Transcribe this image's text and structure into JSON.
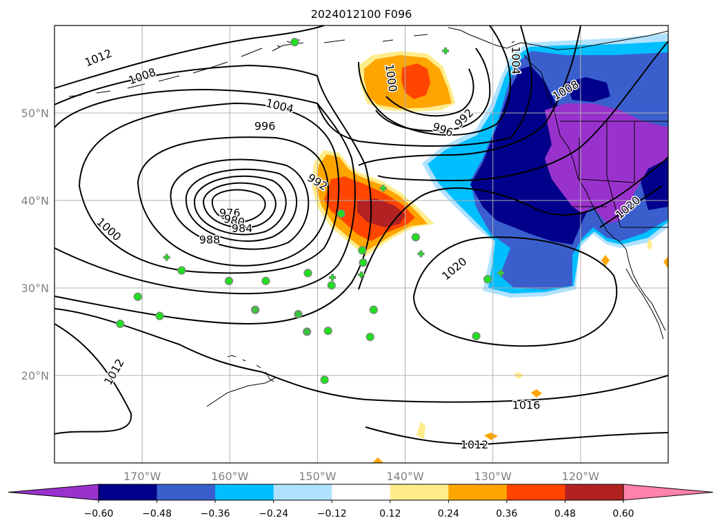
{
  "title": "2024012100 F096",
  "map": {
    "lat_range": [
      10,
      60
    ],
    "lon_range": [
      -180,
      -110
    ],
    "lat_ticks": [
      {
        "value": 20,
        "label": "20°N"
      },
      {
        "value": 30,
        "label": "30°N"
      },
      {
        "value": 40,
        "label": "40°N"
      },
      {
        "value": 50,
        "label": "50°N"
      }
    ],
    "lon_ticks": [
      {
        "value": -170,
        "label": "170°W"
      },
      {
        "value": -160,
        "label": "160°W"
      },
      {
        "value": -150,
        "label": "150°W"
      },
      {
        "value": -140,
        "label": "140°W"
      },
      {
        "value": -130,
        "label": "130°W"
      },
      {
        "value": -120,
        "label": "120°W"
      }
    ],
    "grid": true
  },
  "contour_labels": [
    {
      "text": "1012",
      "lon": -175,
      "lat": 56.3,
      "rot": -22
    },
    {
      "text": "1008",
      "lon": -170,
      "lat": 54.2,
      "rot": -20
    },
    {
      "text": "1004",
      "lon": -154.3,
      "lat": 50.8,
      "rot": 14
    },
    {
      "text": "1000",
      "lon": -141.6,
      "lat": 54,
      "rot": 82
    },
    {
      "text": "996",
      "lon": -156,
      "lat": 48.5,
      "rot": 0
    },
    {
      "text": "996",
      "lon": -135.7,
      "lat": 48.1,
      "rot": 20
    },
    {
      "text": "992",
      "lon": -133.3,
      "lat": 49.4,
      "rot": -45
    },
    {
      "text": "992",
      "lon": -150,
      "lat": 42.1,
      "rot": 32
    },
    {
      "text": "976",
      "lon": -160,
      "lat": 38.6,
      "rot": 0
    },
    {
      "text": "980",
      "lon": -159.5,
      "lat": 37.7,
      "rot": 12
    },
    {
      "text": "984",
      "lon": -158.6,
      "lat": 36.8,
      "rot": 0
    },
    {
      "text": "988",
      "lon": -162.3,
      "lat": 35.5,
      "rot": 0
    },
    {
      "text": "1000",
      "lon": -173.8,
      "lat": 36.7,
      "rot": 42
    },
    {
      "text": "1004",
      "lon": -127.4,
      "lat": 56,
      "rot": 90
    },
    {
      "text": "1008",
      "lon": -121.7,
      "lat": 52.6,
      "rot": -30
    },
    {
      "text": "1020",
      "lon": -134.4,
      "lat": 32.2,
      "rot": -40
    },
    {
      "text": "1020",
      "lon": -114.6,
      "lat": 39.2,
      "rot": -40
    },
    {
      "text": "1016",
      "lon": -126.2,
      "lat": 16.6,
      "rot": 0
    },
    {
      "text": "1012",
      "lon": -132.1,
      "lat": 12.1,
      "rot": 0
    },
    {
      "text": "1012",
      "lon": -173.2,
      "lat": 20.4,
      "rot": -60
    }
  ],
  "observations": {
    "circles": [
      [
        -152.6,
        58.1
      ],
      [
        -165.5,
        32
      ],
      [
        -170.5,
        29
      ],
      [
        -168,
        26.8
      ],
      [
        -172.5,
        25.9
      ],
      [
        -160.1,
        30.8
      ],
      [
        -155.9,
        30.8
      ],
      [
        -151.1,
        31.7
      ],
      [
        -148.4,
        30.3
      ],
      [
        -147.3,
        38.5
      ],
      [
        -144.9,
        34.3
      ],
      [
        -144.8,
        32.9
      ],
      [
        -143.6,
        27.5
      ],
      [
        -144,
        24.4
      ],
      [
        -138.8,
        35.8
      ],
      [
        -148.8,
        25.1
      ],
      [
        -149.2,
        19.5
      ],
      [
        -130.6,
        31
      ],
      [
        -131.9,
        24.5
      ],
      [
        -157.1,
        27.5
      ],
      [
        -152.2,
        27
      ],
      [
        -151.2,
        25
      ]
    ],
    "crosses": [
      [
        -135.4,
        57.1
      ],
      [
        -167.2,
        33.5
      ],
      [
        -157.1,
        27.5
      ],
      [
        -152.2,
        27
      ],
      [
        -151.2,
        25
      ],
      [
        -148.3,
        31.2
      ],
      [
        -145,
        31.5
      ],
      [
        -142.5,
        41.4
      ],
      [
        -138.2,
        33.9
      ],
      [
        -129.1,
        31.7
      ]
    ]
  },
  "colorbar": {
    "colors": [
      "#9932CC",
      "#00008B",
      "#3A5FCD",
      "#00BFFF",
      "#B0E2FF",
      "#FFFFFF",
      "#FFEC8B",
      "#FFA500",
      "#FF4500",
      "#B22222",
      "#FF82AB"
    ],
    "ticks": [
      "−0.60",
      "−0.48",
      "−0.36",
      "−0.24",
      "−0.12",
      "0.12",
      "0.24",
      "0.36",
      "0.48",
      "0.60"
    ]
  }
}
